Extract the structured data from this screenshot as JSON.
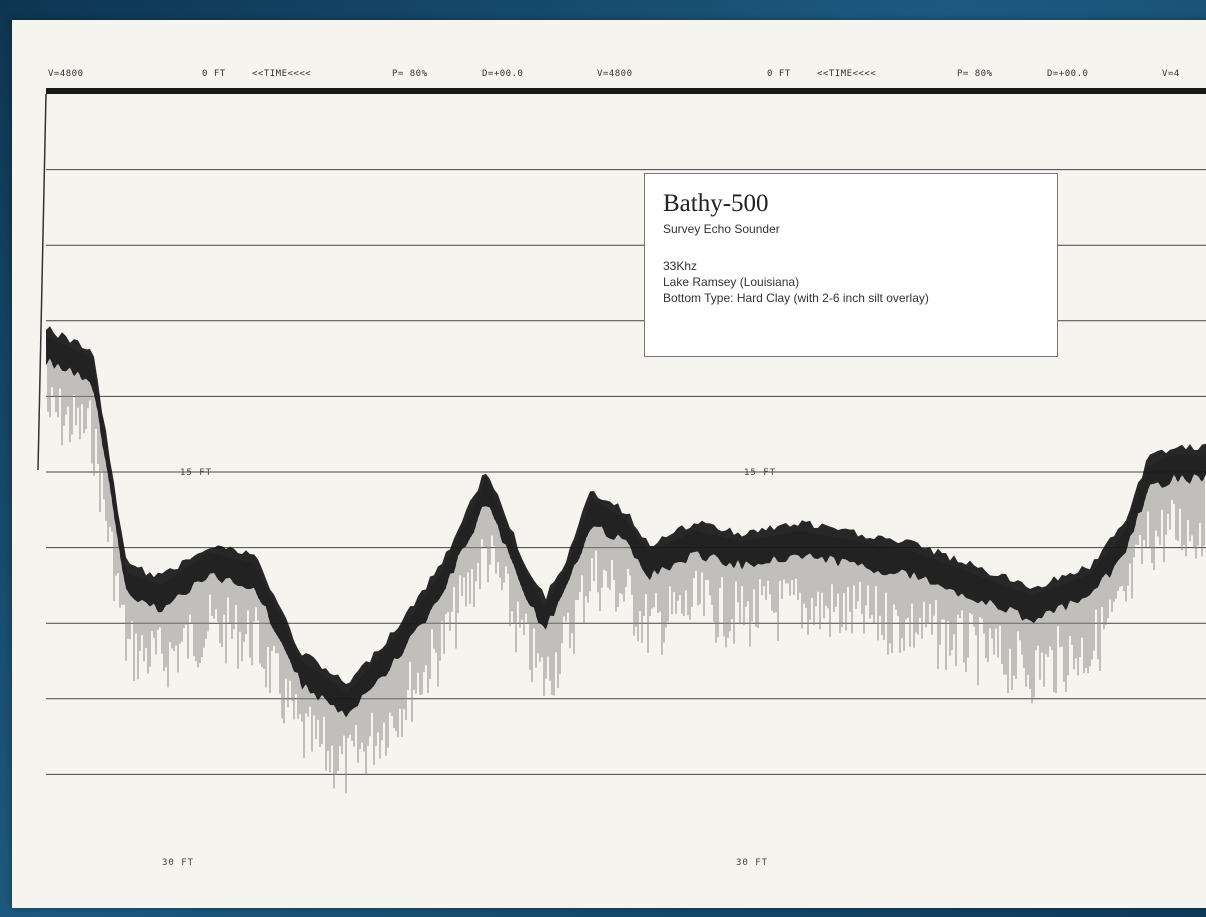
{
  "header": {
    "segments": [
      "V=4800",
      "0 FT",
      "<<TIME<<<<",
      "P= 80%",
      "D=+00.0",
      "V=4800",
      "0 FT",
      "<<TIME<<<<",
      "P= 80%",
      "D=+00.0",
      "V=4"
    ]
  },
  "depth_labels": [
    "15 FT",
    "15 FT",
    "30 FT",
    "30 FT"
  ],
  "legend": {
    "title": "Bathy-500",
    "subtitle": "Survey Echo Sounder",
    "frequency": "33Khz",
    "location": "Lake Ramsey (Louisiana)",
    "bottom_type": "Bottom Type: Hard Clay (with 2-6 inch silt overlay)"
  },
  "colors": {
    "paper": "#f6f4ef",
    "trace": "#111111",
    "grid": "#444444",
    "backdrop": "#1c5a80"
  },
  "chart_data": {
    "type": "area",
    "y_unit": "FT",
    "y_range": [
      0,
      35
    ],
    "y_reversed": true,
    "depth_ticks": [
      15,
      30
    ],
    "grid_lines_ft": [
      3.5,
      7,
      10.5,
      14,
      17.5,
      21,
      24.5,
      28,
      31.5
    ],
    "bottom_profile": {
      "x_fraction": [
        0.0,
        0.04,
        0.07,
        0.1,
        0.14,
        0.18,
        0.22,
        0.26,
        0.3,
        0.34,
        0.38,
        0.41,
        0.43,
        0.45,
        0.47,
        0.5,
        0.52,
        0.54,
        0.56,
        0.6,
        0.65,
        0.7,
        0.75,
        0.8,
        0.85,
        0.9,
        0.93,
        0.95,
        0.97,
        1.0
      ],
      "depth_ft": [
        11.5,
        12.5,
        22.5,
        23.0,
        21.5,
        22.0,
        26.5,
        28.0,
        25.5,
        22.5,
        18.0,
        22.0,
        24.0,
        22.0,
        19.0,
        20.0,
        21.5,
        21.0,
        20.5,
        21.0,
        20.5,
        21.0,
        21.5,
        22.5,
        23.5,
        22.5,
        20.5,
        17.5,
        17.0,
        17.0
      ]
    }
  }
}
